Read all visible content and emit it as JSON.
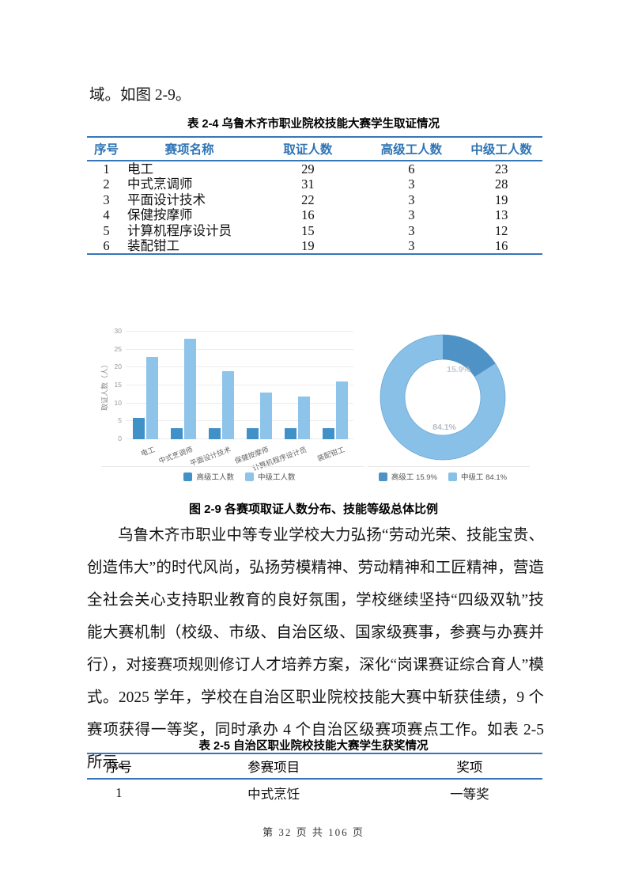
{
  "page": {
    "top_text": "域。如图 2-9。",
    "footer": "第 32 页 共 106 页"
  },
  "table1": {
    "caption": "表 2-4  乌鲁木齐市职业院校技能大赛学生取证情况",
    "headers": [
      "序号",
      "赛项名称",
      "取证人数",
      "高级工人数",
      "中级工人数"
    ],
    "rows": [
      [
        "1",
        "电工",
        "29",
        "6",
        "23"
      ],
      [
        "2",
        "中式烹调师",
        "31",
        "3",
        "28"
      ],
      [
        "3",
        "平面设计技术",
        "22",
        "3",
        "19"
      ],
      [
        "4",
        "保健按摩师",
        "16",
        "3",
        "13"
      ],
      [
        "5",
        "计算机程序设计员",
        "15",
        "3",
        "12"
      ],
      [
        "6",
        "装配钳工",
        "19",
        "3",
        "16"
      ]
    ]
  },
  "figure": {
    "caption": "图 2-9  各赛项取证人数分布、技能等级总体比例"
  },
  "paragraph": "乌鲁木齐市职业中等专业学校大力弘扬“劳动光荣、技能宝贵、创造伟大”的时代风尚，弘扬劳模精神、劳动精神和工匠精神，营造全社会关心支持职业教育的良好氛围，学校继续坚持“四级双轨”技能大赛机制（校级、市级、自治区级、国家级赛事，参赛与办赛并行），对接赛项规则修订人才培养方案，深化“岗课赛证综合育人”模式。2025 学年，学校在自治区职业院校技能大赛中斩获佳绩，9 个赛项获得一等奖，同时承办 4 个自治区级赛项赛点工作。如表 2-5 所示。",
  "table2": {
    "caption": "表 2-5  自治区职业院校技能大赛学生获奖情况",
    "headers": [
      "序号",
      "参赛项目",
      "奖项"
    ],
    "rows": [
      [
        "1",
        "中式烹饪",
        "一等奖"
      ]
    ]
  },
  "colors": {
    "table_border": "#3676b8",
    "table_header_text": "#2e74b5"
  },
  "chart_data": [
    {
      "type": "bar",
      "categories": [
        "电工",
        "中式烹调师",
        "平面设计技术",
        "保健按摩师",
        "计算机程序设计员",
        "装配钳工"
      ],
      "series": [
        {
          "name": "高级工人数",
          "color": "#4191c9",
          "values": [
            6,
            3,
            3,
            3,
            3,
            3
          ]
        },
        {
          "name": "中级工人数",
          "color": "#8ec3ea",
          "values": [
            23,
            28,
            19,
            13,
            12,
            16
          ]
        }
      ],
      "title": "",
      "xlabel": "",
      "ylabel": "取证人数（人）",
      "ylim": [
        0,
        30
      ],
      "yticks": [
        0,
        5,
        10,
        15,
        20,
        25,
        30
      ],
      "grid": true,
      "legend_position": "bottom"
    },
    {
      "type": "pie",
      "donut": true,
      "labels": [
        "高级工",
        "中级工"
      ],
      "values": [
        15.9,
        84.1
      ],
      "colors": [
        "#4e92c6",
        "#89c0e8"
      ],
      "outline_color": "#68a8d6",
      "slice_labels": [
        "15.9%",
        "84.1%"
      ],
      "legend": [
        "高级工 15.9%",
        "中级工 84.1%"
      ],
      "legend_position": "bottom"
    }
  ]
}
